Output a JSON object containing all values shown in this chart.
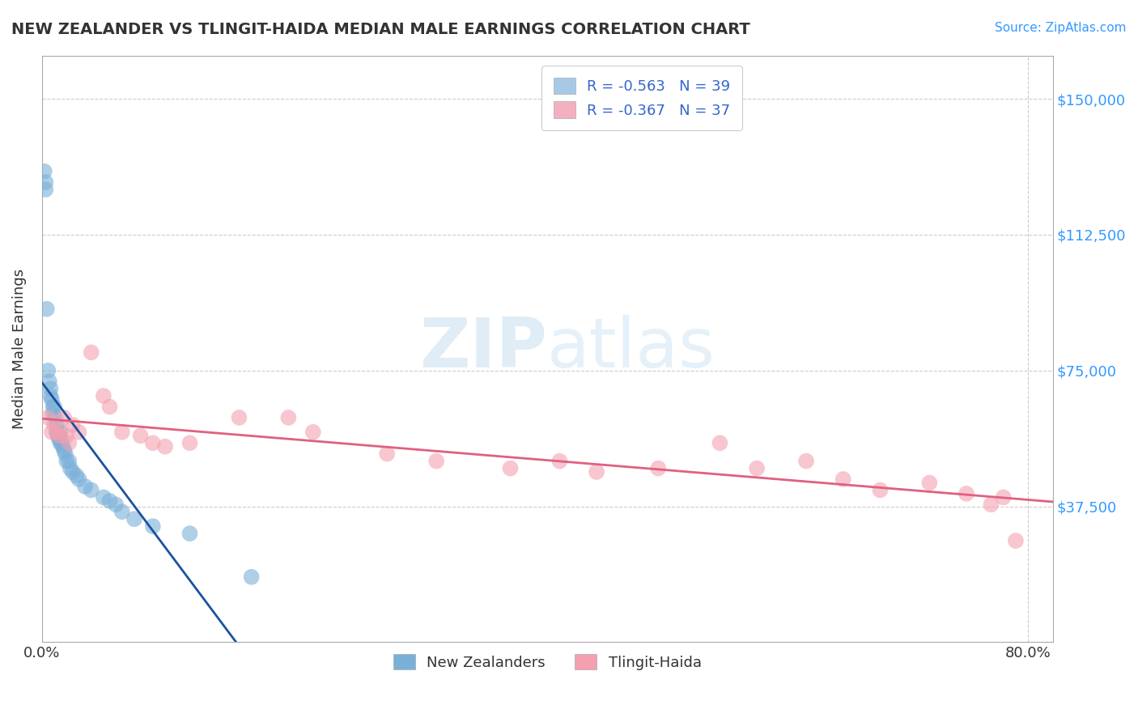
{
  "title": "NEW ZEALANDER VS TLINGIT-HAIDA MEDIAN MALE EARNINGS CORRELATION CHART",
  "source": "Source: ZipAtlas.com",
  "ylabel": "Median Male Earnings",
  "ytick_labels": [
    "$37,500",
    "$75,000",
    "$112,500",
    "$150,000"
  ],
  "ytick_values": [
    37500,
    75000,
    112500,
    150000
  ],
  "ylim": [
    0,
    162000
  ],
  "xlim": [
    0.0,
    0.82
  ],
  "legend_entries": [
    {
      "label": "R = -0.563   N = 39",
      "color": "#a8c8e8"
    },
    {
      "label": "R = -0.367   N = 37",
      "color": "#f4b0c0"
    }
  ],
  "legend_bottom": [
    "New Zealanders",
    "Tlingit-Haida"
  ],
  "nz_color": "#7ab0d8",
  "th_color": "#f4a0b0",
  "nz_line_color": "#1a52a0",
  "th_line_color": "#e06080",
  "watermark_color": "#c8dff0",
  "nz_scatter_x": [
    0.002,
    0.003,
    0.003,
    0.004,
    0.005,
    0.006,
    0.007,
    0.007,
    0.008,
    0.009,
    0.009,
    0.01,
    0.011,
    0.012,
    0.012,
    0.013,
    0.014,
    0.015,
    0.015,
    0.016,
    0.017,
    0.018,
    0.019,
    0.02,
    0.022,
    0.023,
    0.025,
    0.028,
    0.03,
    0.035,
    0.04,
    0.05,
    0.055,
    0.06,
    0.065,
    0.075,
    0.09,
    0.12,
    0.17
  ],
  "nz_scatter_y": [
    130000,
    127000,
    125000,
    92000,
    75000,
    72000,
    70000,
    68000,
    67000,
    65000,
    63000,
    65000,
    62000,
    60000,
    58000,
    57000,
    56000,
    55000,
    58000,
    55000,
    54000,
    53000,
    52000,
    50000,
    50000,
    48000,
    47000,
    46000,
    45000,
    43000,
    42000,
    40000,
    39000,
    38000,
    36000,
    34000,
    32000,
    30000,
    18000
  ],
  "th_scatter_x": [
    0.005,
    0.008,
    0.01,
    0.012,
    0.015,
    0.018,
    0.02,
    0.022,
    0.025,
    0.03,
    0.04,
    0.05,
    0.055,
    0.065,
    0.08,
    0.09,
    0.1,
    0.12,
    0.16,
    0.2,
    0.22,
    0.28,
    0.32,
    0.38,
    0.42,
    0.45,
    0.5,
    0.55,
    0.58,
    0.62,
    0.65,
    0.68,
    0.72,
    0.75,
    0.77,
    0.78,
    0.79
  ],
  "th_scatter_y": [
    62000,
    58000,
    60000,
    58000,
    57000,
    62000,
    57000,
    55000,
    60000,
    58000,
    80000,
    68000,
    65000,
    58000,
    57000,
    55000,
    54000,
    55000,
    62000,
    62000,
    58000,
    52000,
    50000,
    48000,
    50000,
    47000,
    48000,
    55000,
    48000,
    50000,
    45000,
    42000,
    44000,
    41000,
    38000,
    40000,
    28000
  ]
}
